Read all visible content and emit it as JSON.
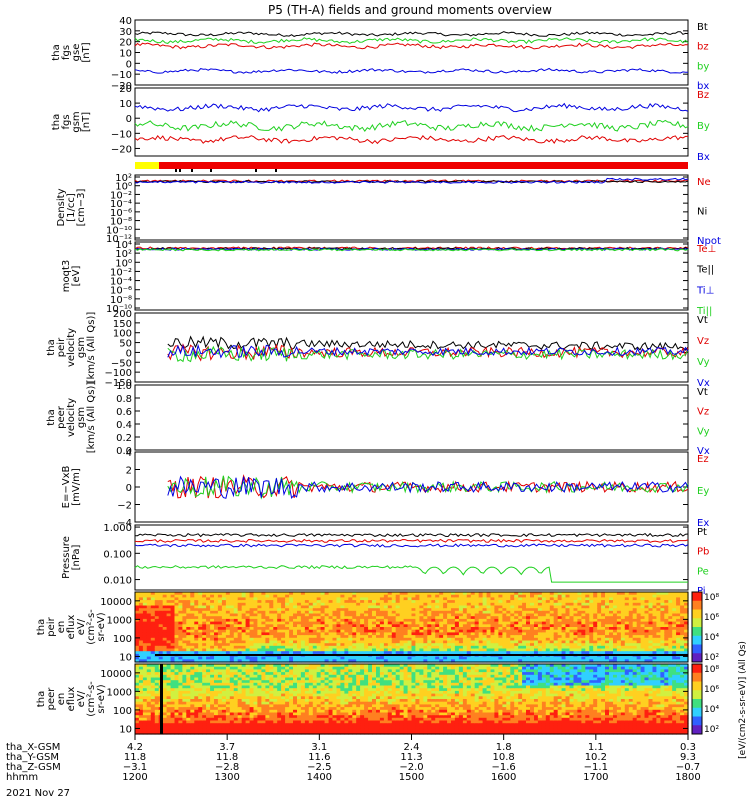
{
  "title": "P5 (TH-A) fields and ground moments overview",
  "date_label": "2021 Nov 27",
  "colors": {
    "black": "#000000",
    "red": "#e00000",
    "green": "#20d020",
    "blue": "#0000e0",
    "bar_yellow": "#ffff00",
    "bar_red": "#ee0000"
  },
  "chart_data": [
    {
      "id": "fgs_gse",
      "type": "line",
      "ylabel": [
        "tha",
        "fgs",
        "gse",
        "[nT]"
      ],
      "ylim": [
        -20,
        40
      ],
      "ticks": [
        {
          "v": 40,
          "t": "40"
        },
        {
          "v": 30,
          "t": "30"
        },
        {
          "v": 20,
          "t": "20"
        },
        {
          "v": 10,
          "t": "10"
        },
        {
          "v": 0,
          "t": "0"
        },
        {
          "v": -10,
          "t": "−10"
        },
        {
          "v": -20,
          "t": "−20"
        }
      ],
      "series": [
        {
          "name": "Bt",
          "color": "#000000",
          "base": 27,
          "amp": 2.5
        },
        {
          "name": "bz",
          "color": "#e00000",
          "base": 16,
          "amp": 3
        },
        {
          "name": "by",
          "color": "#20d020",
          "base": 21,
          "amp": 3
        },
        {
          "name": "bx",
          "color": "#0000e0",
          "base": -7,
          "amp": 2.5
        }
      ]
    },
    {
      "id": "fgs_gsm",
      "type": "line",
      "ylabel": [
        "tha",
        "fgs",
        "gsm",
        "[nT]"
      ],
      "ylim": [
        -25,
        20
      ],
      "ticks": [
        {
          "v": 20,
          "t": "20"
        },
        {
          "v": 10,
          "t": "10"
        },
        {
          "v": 0,
          "t": "0"
        },
        {
          "v": -10,
          "t": "−10"
        },
        {
          "v": -20,
          "t": "−20"
        }
      ],
      "series": [
        {
          "name": "Bz",
          "color": "#e00000",
          "base": -14,
          "amp": 3
        },
        {
          "name": "By",
          "color": "#20d020",
          "base": -5,
          "amp": 4
        },
        {
          "name": "Bx",
          "color": "#0000e0",
          "base": 7,
          "amp": 3
        }
      ]
    },
    {
      "id": "density",
      "type": "line",
      "ylabel": [
        "Density",
        "[1/cc]",
        "[cm−3]"
      ],
      "scale": "log",
      "ticks": [
        {
          "t": "10²"
        },
        {
          "t": "10⁰"
        },
        {
          "t": "10⁻²"
        },
        {
          "t": "10⁻⁴"
        },
        {
          "t": "10⁻⁶"
        },
        {
          "t": "10⁻⁸"
        },
        {
          "t": "10⁻¹⁰"
        },
        {
          "t": "10⁻¹²"
        }
      ],
      "series": [
        {
          "name": "Ne",
          "color": "#e00000"
        },
        {
          "name": "Ni",
          "color": "#000000"
        },
        {
          "name": "Npot",
          "color": "#0000e0"
        }
      ]
    },
    {
      "id": "temp",
      "type": "line",
      "ylabel": [
        "moqt3",
        "[eV]"
      ],
      "scale": "log",
      "ticks": [
        {
          "t": "10⁴"
        },
        {
          "t": "10²"
        },
        {
          "t": "10⁰"
        },
        {
          "t": "10⁻²"
        },
        {
          "t": "10⁻⁴"
        },
        {
          "t": "10⁻⁶"
        },
        {
          "t": "10⁻⁸"
        },
        {
          "t": "10⁻¹⁰"
        }
      ],
      "series": [
        {
          "name": "Te⊥",
          "color": "#e00000"
        },
        {
          "name": "Te||",
          "color": "#000000"
        },
        {
          "name": "Ti⊥",
          "color": "#0000e0"
        },
        {
          "name": "Ti||",
          "color": "#20d020"
        }
      ]
    },
    {
      "id": "peir_vel",
      "type": "line",
      "ylabel": [
        "tha",
        "peir",
        "velocity",
        "gsm",
        "[km/s (All Qs)]"
      ],
      "ylim": [
        -150,
        200
      ],
      "ticks": [
        {
          "v": 200,
          "t": "200"
        },
        {
          "v": 150,
          "t": "150"
        },
        {
          "v": 100,
          "t": "100"
        },
        {
          "v": 50,
          "t": "50"
        },
        {
          "v": 0,
          "t": "0"
        },
        {
          "v": -50,
          "t": "−50"
        },
        {
          "v": -100,
          "t": "−100"
        },
        {
          "v": -150,
          "t": "−150"
        }
      ],
      "series": [
        {
          "name": "Vt",
          "color": "#000000"
        },
        {
          "name": "Vz",
          "color": "#e00000"
        },
        {
          "name": "Vy",
          "color": "#20d020"
        },
        {
          "name": "Vx",
          "color": "#0000e0"
        }
      ]
    },
    {
      "id": "peer_vel",
      "type": "line",
      "ylabel": [
        "tha",
        "peer",
        "velocity",
        "gsm",
        "[km/s (All Qs)]"
      ],
      "ylim": [
        0,
        1
      ],
      "ticks": [
        {
          "v": 1.0,
          "t": "1.0"
        },
        {
          "v": 0.8,
          "t": "0.8"
        },
        {
          "v": 0.6,
          "t": "0.6"
        },
        {
          "v": 0.4,
          "t": "0.4"
        },
        {
          "v": 0.2,
          "t": "0.2"
        },
        {
          "v": 0.0,
          "t": "0.0"
        }
      ],
      "series": [
        {
          "name": "Vt",
          "color": "#000000"
        },
        {
          "name": "Vz",
          "color": "#e00000"
        },
        {
          "name": "Vy",
          "color": "#20d020"
        },
        {
          "name": "Vx",
          "color": "#0000e0"
        }
      ]
    },
    {
      "id": "efield",
      "type": "line",
      "ylabel": [
        "E=−VxB",
        "[mV/m]"
      ],
      "ylim": [
        -4,
        4
      ],
      "ticks": [
        {
          "v": 4,
          "t": "4"
        },
        {
          "v": 2,
          "t": "2"
        },
        {
          "v": 0,
          "t": "0"
        },
        {
          "v": -2,
          "t": "−2"
        },
        {
          "v": -4,
          "t": "−4"
        }
      ],
      "series": [
        {
          "name": "Ez",
          "color": "#e00000"
        },
        {
          "name": "Ey",
          "color": "#20d020"
        },
        {
          "name": "Ex",
          "color": "#0000e0"
        }
      ]
    },
    {
      "id": "pressure",
      "type": "line",
      "ylabel": [
        "Pressure",
        "[nPa]"
      ],
      "scale": "log",
      "ylim": [
        0.004,
        1.2
      ],
      "ticks": [
        {
          "v": 1.0,
          "t": "1.000"
        },
        {
          "v": 0.1,
          "t": "0.100"
        },
        {
          "v": 0.01,
          "t": "0.010"
        }
      ],
      "series": [
        {
          "name": "Pt",
          "color": "#000000"
        },
        {
          "name": "Pb",
          "color": "#e00000"
        },
        {
          "name": "Pe",
          "color": "#20d020"
        },
        {
          "name": "Pi",
          "color": "#0000e0"
        }
      ]
    },
    {
      "id": "peir_spec",
      "type": "heatmap",
      "ylabel": [
        "tha",
        "peir",
        "en",
        "eflux",
        "eV/",
        "(cm²-s-",
        "sr-eV)"
      ],
      "scale": "log",
      "ylim": [
        5,
        30000
      ],
      "ticks": [
        {
          "v": 10000,
          "t": "10000"
        },
        {
          "v": 1000,
          "t": "1000"
        },
        {
          "v": 100,
          "t": "100"
        },
        {
          "v": 10,
          "t": "10"
        }
      ],
      "colorbar_ticks": [
        "10⁸",
        "10⁶",
        "10⁴",
        "10²"
      ]
    },
    {
      "id": "peer_spec",
      "type": "heatmap",
      "ylabel": [
        "tha",
        "peer",
        "en",
        "eflux",
        "eV/",
        "(cm²-s-",
        "sr-eV)"
      ],
      "scale": "log",
      "ylim": [
        5,
        30000
      ],
      "ticks": [
        {
          "v": 10000,
          "t": "10000"
        },
        {
          "v": 1000,
          "t": "1000"
        },
        {
          "v": 100,
          "t": "100"
        },
        {
          "v": 10,
          "t": "10"
        }
      ],
      "colorbar_ticks": [
        "10⁸",
        "10⁶",
        "10⁴",
        "10²"
      ]
    }
  ],
  "colorbar_label": "[eV/(cm2-s-sr-eV)] (All Qs)",
  "x_axis": {
    "rows": [
      {
        "name": "tha_X-GSM",
        "values": [
          "4.2",
          "3.7",
          "3.1",
          "2.4",
          "1.8",
          "1.1",
          "0.3"
        ]
      },
      {
        "name": "tha_Y-GSM",
        "values": [
          "11.8",
          "11.8",
          "11.6",
          "11.3",
          "10.8",
          "10.2",
          "9.3"
        ]
      },
      {
        "name": "tha_Z-GSM",
        "values": [
          "−3.1",
          "−2.8",
          "−2.5",
          "−2.0",
          "−1.6",
          "−1.1",
          "−0.7"
        ]
      },
      {
        "name": "hhmm",
        "values": [
          "1200",
          "1300",
          "1400",
          "1500",
          "1600",
          "1700",
          "1800"
        ]
      }
    ]
  }
}
